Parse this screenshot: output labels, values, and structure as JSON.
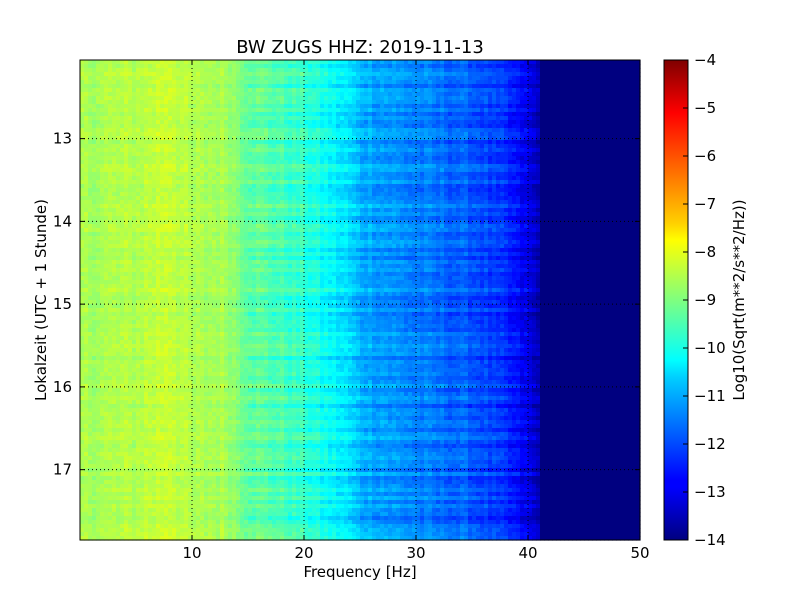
{
  "chart_data": {
    "type": "heatmap",
    "title": "BW ZUGS HHZ: 2019-11-13",
    "xlabel": "Frequency [Hz]",
    "ylabel": "Lokalzeit (UTC + 1 Stunde)",
    "xlim": [
      0,
      50
    ],
    "ylim": [
      12.05,
      17.85
    ],
    "y_inverted": true,
    "x_ticks": [
      10,
      20,
      30,
      40,
      50
    ],
    "x_tick_labels": [
      "10",
      "20",
      "30",
      "40",
      "50"
    ],
    "y_ticks": [
      13,
      14,
      15,
      16,
      17
    ],
    "y_tick_labels": [
      "13",
      "14",
      "15",
      "16",
      "17"
    ],
    "grid": true,
    "colormap": "jet",
    "colorbar": {
      "label": "Log10(Sqrt(m**2/s**2/Hz))",
      "range": [
        -14,
        -4
      ],
      "ticks": [
        -4,
        -5,
        -6,
        -7,
        -8,
        -9,
        -10,
        -11,
        -12,
        -13,
        -14
      ],
      "tick_labels": [
        "−4",
        "−5",
        "−6",
        "−7",
        "−8",
        "−9",
        "−10",
        "−11",
        "−12",
        "−13",
        "−14"
      ]
    },
    "spectral_profile": {
      "frequency_hz": [
        0,
        5,
        8,
        10,
        13,
        15,
        20,
        24,
        25,
        30,
        35,
        38,
        40,
        42,
        50
      ],
      "log10_psd": [
        -8.6,
        -8.5,
        -8.2,
        -8.6,
        -8.6,
        -9.2,
        -9.8,
        -10.6,
        -11.0,
        -11.5,
        -11.9,
        -12.4,
        -13.0,
        -14.0,
        -14.0
      ]
    }
  }
}
